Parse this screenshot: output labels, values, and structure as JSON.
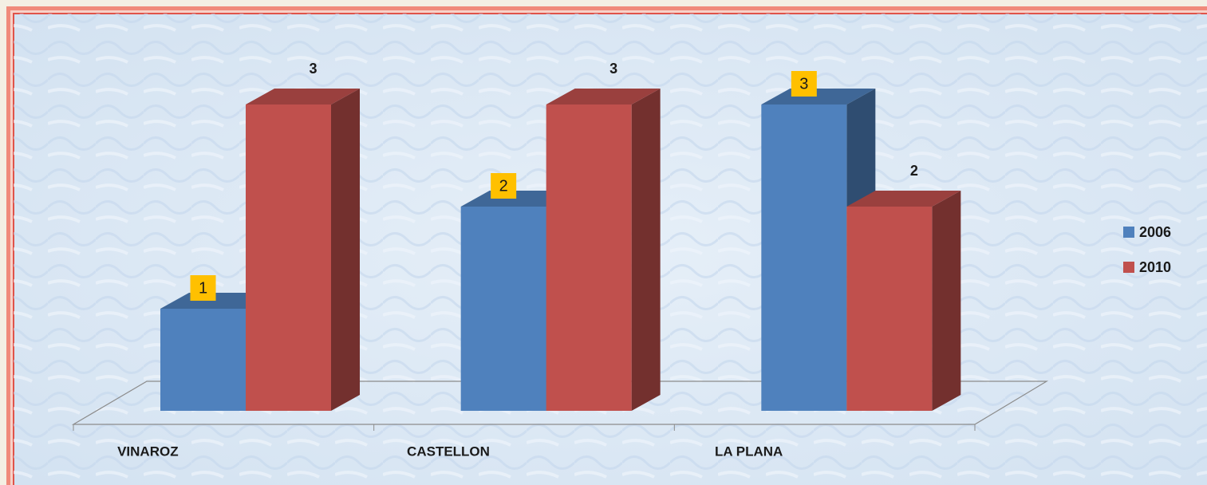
{
  "chart_data": {
    "type": "bar3d",
    "categories": [
      "VINAROZ",
      "CASTELLON",
      "LA PLANA"
    ],
    "series": [
      {
        "name": "2006",
        "color": "#4f81bd",
        "label_background": "#ffc000",
        "values": [
          1,
          2,
          3
        ]
      },
      {
        "name": "2010",
        "color": "#c0504d",
        "values": [
          3,
          3,
          2
        ]
      }
    ],
    "legend": "right"
  }
}
